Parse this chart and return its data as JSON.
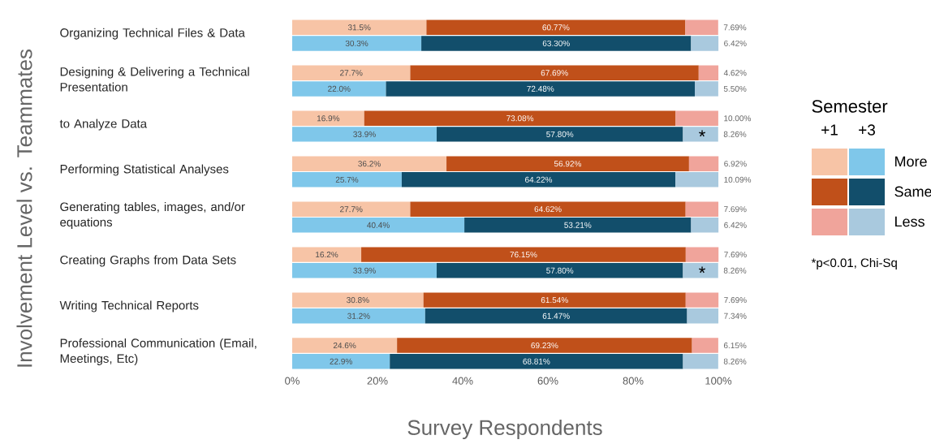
{
  "chart_data": {
    "type": "bar",
    "orientation": "horizontal",
    "stacked": true,
    "xlabel": "Survey Respondents",
    "ylabel": "Involvement Level vs. Teammates",
    "legend_title": "Semester",
    "legend": "right",
    "categories": [
      null,
      "Organizing Technical Files & Data",
      null,
      "Designing & Delivering a Technical Presentation",
      null,
      "to Analyze Data",
      null,
      "Performing Statistical Analyses",
      null,
      "Generating tables, images, and/or equations",
      null,
      "Creating Graphs from Data Sets",
      null,
      "Writing Technical Reports",
      null,
      "Professional Communication (Email, Meetings, Etc)"
    ],
    "xlim": [
      0,
      100
    ],
    "xticks": [
      {
        "value": 0,
        "label": "0%"
      },
      {
        "value": 20,
        "label": "20%"
      },
      {
        "value": 40,
        "label": "40%"
      },
      {
        "value": 60,
        "label": "60%"
      },
      {
        "value": 80,
        "label": "80%"
      },
      {
        "value": 100,
        "label": "100%"
      }
    ],
    "series": [
      {
        "name": "More",
        "colors": [
          "#f7c4a6",
          "#7fc7ea",
          "#f7c4a6",
          "#7fc7ea",
          "#f7c4a6",
          "#7fc7ea",
          "#f7c4a6",
          "#7fc7ea",
          "#f7c4a6",
          "#7fc7ea",
          "#f7c4a6",
          "#7fc7ea",
          "#f7c4a6",
          "#7fc7ea",
          "#f7c4a6",
          "#7fc7ea"
        ],
        "values": [
          31.5,
          30.3,
          27.7,
          22.0,
          16.9,
          33.9,
          36.2,
          25.7,
          27.7,
          40.4,
          16.2,
          33.9,
          30.8,
          31.2,
          24.6,
          22.9
        ],
        "value_labels": [
          "31.5%",
          "30.3%",
          "27.7%",
          "22.0%",
          "16.9%",
          "33.9%",
          "36.2%",
          "25.7%",
          "27.7%",
          "40.4%",
          "16.2%",
          "33.9%",
          "30.8%",
          "31.2%",
          "24.6%",
          "22.9%"
        ]
      },
      {
        "name": "Same",
        "colors": [
          "#c0501a",
          "#124e6b",
          "#c0501a",
          "#124e6b",
          "#c0501a",
          "#124e6b",
          "#c0501a",
          "#124e6b",
          "#c0501a",
          "#124e6b",
          "#c0501a",
          "#124e6b",
          "#c0501a",
          "#124e6b",
          "#c0501a",
          "#124e6b"
        ],
        "values": [
          60.77,
          63.3,
          67.69,
          72.48,
          73.08,
          57.8,
          56.92,
          64.22,
          64.62,
          53.21,
          76.15,
          57.8,
          61.54,
          61.47,
          69.23,
          68.81
        ],
        "value_labels": [
          "60.77%",
          "63.30%",
          "67.69%",
          "72.48%",
          "73.08%",
          "57.80%",
          "56.92%",
          "64.22%",
          "64.62%",
          "53.21%",
          "76.15%",
          "57.80%",
          "61.54%",
          "61.47%",
          "69.23%",
          "68.81%"
        ]
      },
      {
        "name": "Less",
        "colors": [
          "#f0a49b",
          "#a9c9de",
          "#f0a49b",
          "#a9c9de",
          "#f0a49b",
          "#a9c9de",
          "#f0a49b",
          "#a9c9de",
          "#f0a49b",
          "#a9c9de",
          "#f0a49b",
          "#a9c9de",
          "#f0a49b",
          "#a9c9de",
          "#f0a49b",
          "#a9c9de"
        ],
        "values": [
          7.69,
          6.42,
          4.62,
          5.5,
          10.0,
          8.26,
          6.92,
          10.09,
          7.69,
          6.42,
          7.69,
          8.26,
          7.69,
          7.34,
          6.15,
          8.26
        ],
        "value_labels": [
          "7.69%",
          "6.42%",
          "4.62%",
          "5.50%",
          "10.00%",
          "8.26%",
          "6.92%",
          "10.09%",
          "7.69%",
          "6.42%",
          "7.69%",
          "8.26%",
          "7.69%",
          "7.34%",
          "6.15%",
          "8.26%"
        ]
      }
    ],
    "annotations": [
      "+1",
      "+3",
      "*p<0.01, Chi-Sq",
      "*",
      "*"
    ]
  }
}
